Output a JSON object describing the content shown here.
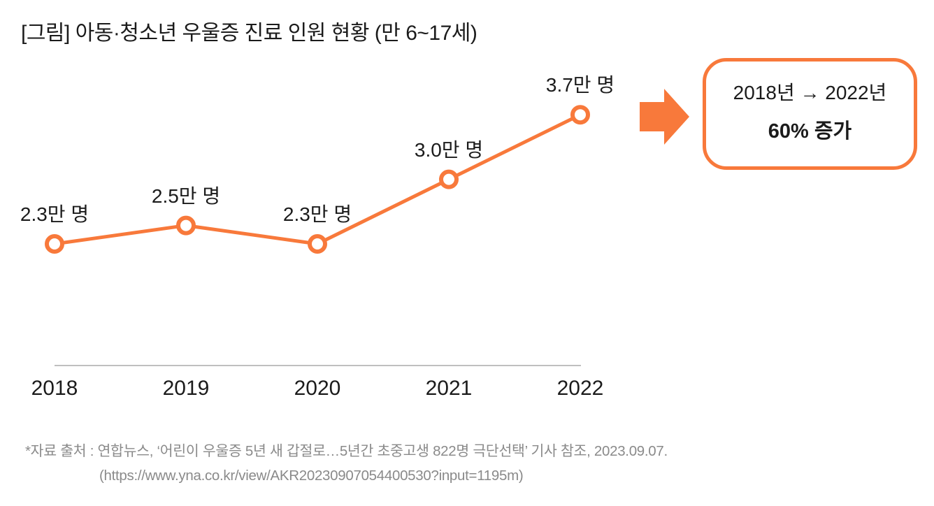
{
  "title": "[그림] 아동·청소년 우울증 진료 인원 현황 (만 6~17세)",
  "chart_data": {
    "type": "line",
    "title": "[그림] 아동·청소년 우울증 진료 인원 현황 (만 6~17세)",
    "categories": [
      "2018",
      "2019",
      "2020",
      "2021",
      "2022"
    ],
    "values": [
      2.3,
      2.5,
      2.3,
      3.0,
      3.7
    ],
    "point_labels": [
      "2.3만 명",
      "2.5만 명",
      "2.3만 명",
      "3.0만 명",
      "3.7만 명"
    ],
    "unit": "만 명",
    "xlabel": "",
    "ylabel": "",
    "ylim": [
      2.0,
      4.0
    ],
    "grid": false,
    "legend": "none",
    "line_color": "#F8793B",
    "marker": "open-circle",
    "axis_line_color": "#BFBFBF"
  },
  "arrow_color": "#F8793B",
  "callout": {
    "period": "2018년 → 2022년",
    "change": "60% 증가",
    "border_color": "#F8793B"
  },
  "source": {
    "line1": "*자료 출처 : 연합뉴스, ‘어린이 우울증 5년 새 갑절로…5년간 초중고생 822명 극단선택’ 기사 참조, 2023.09.07.",
    "line2": "(https://www.yna.co.kr/view/AKR20230907054400530?input=1195m)"
  }
}
